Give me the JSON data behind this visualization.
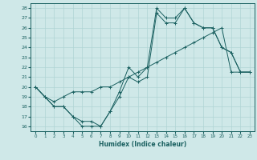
{
  "title": "",
  "xlabel": "Humidex (Indice chaleur)",
  "bg_color": "#cfe8e8",
  "grid_color": "#b0d4d4",
  "line_color": "#1a6060",
  "xlim": [
    -0.5,
    23.5
  ],
  "ylim": [
    15.5,
    28.5
  ],
  "yticks": [
    16,
    17,
    18,
    19,
    20,
    21,
    22,
    23,
    24,
    25,
    26,
    27,
    28
  ],
  "xticks": [
    0,
    1,
    2,
    3,
    4,
    5,
    6,
    7,
    8,
    9,
    10,
    11,
    12,
    13,
    14,
    15,
    16,
    17,
    18,
    19,
    20,
    21,
    22,
    23
  ],
  "line1": [
    20,
    19,
    18,
    18,
    17,
    16.5,
    16.5,
    16,
    17.5,
    19.5,
    22,
    21,
    22,
    28,
    27,
    27,
    28,
    26.5,
    26,
    26,
    24,
    23.5,
    21.5,
    21.5
  ],
  "line2": [
    20,
    19,
    18,
    18,
    17,
    16,
    16,
    16,
    17.5,
    19,
    21,
    20.5,
    21,
    27.5,
    26.5,
    26.5,
    28,
    26.5,
    26,
    26,
    24,
    23.5,
    21.5,
    21.5
  ],
  "line3": [
    20,
    19,
    18.5,
    19,
    19.5,
    19.5,
    19.5,
    20,
    20,
    20.5,
    21,
    21.5,
    22,
    22.5,
    23,
    23.5,
    24,
    24.5,
    25,
    25.5,
    26,
    21.5,
    21.5,
    21.5
  ]
}
